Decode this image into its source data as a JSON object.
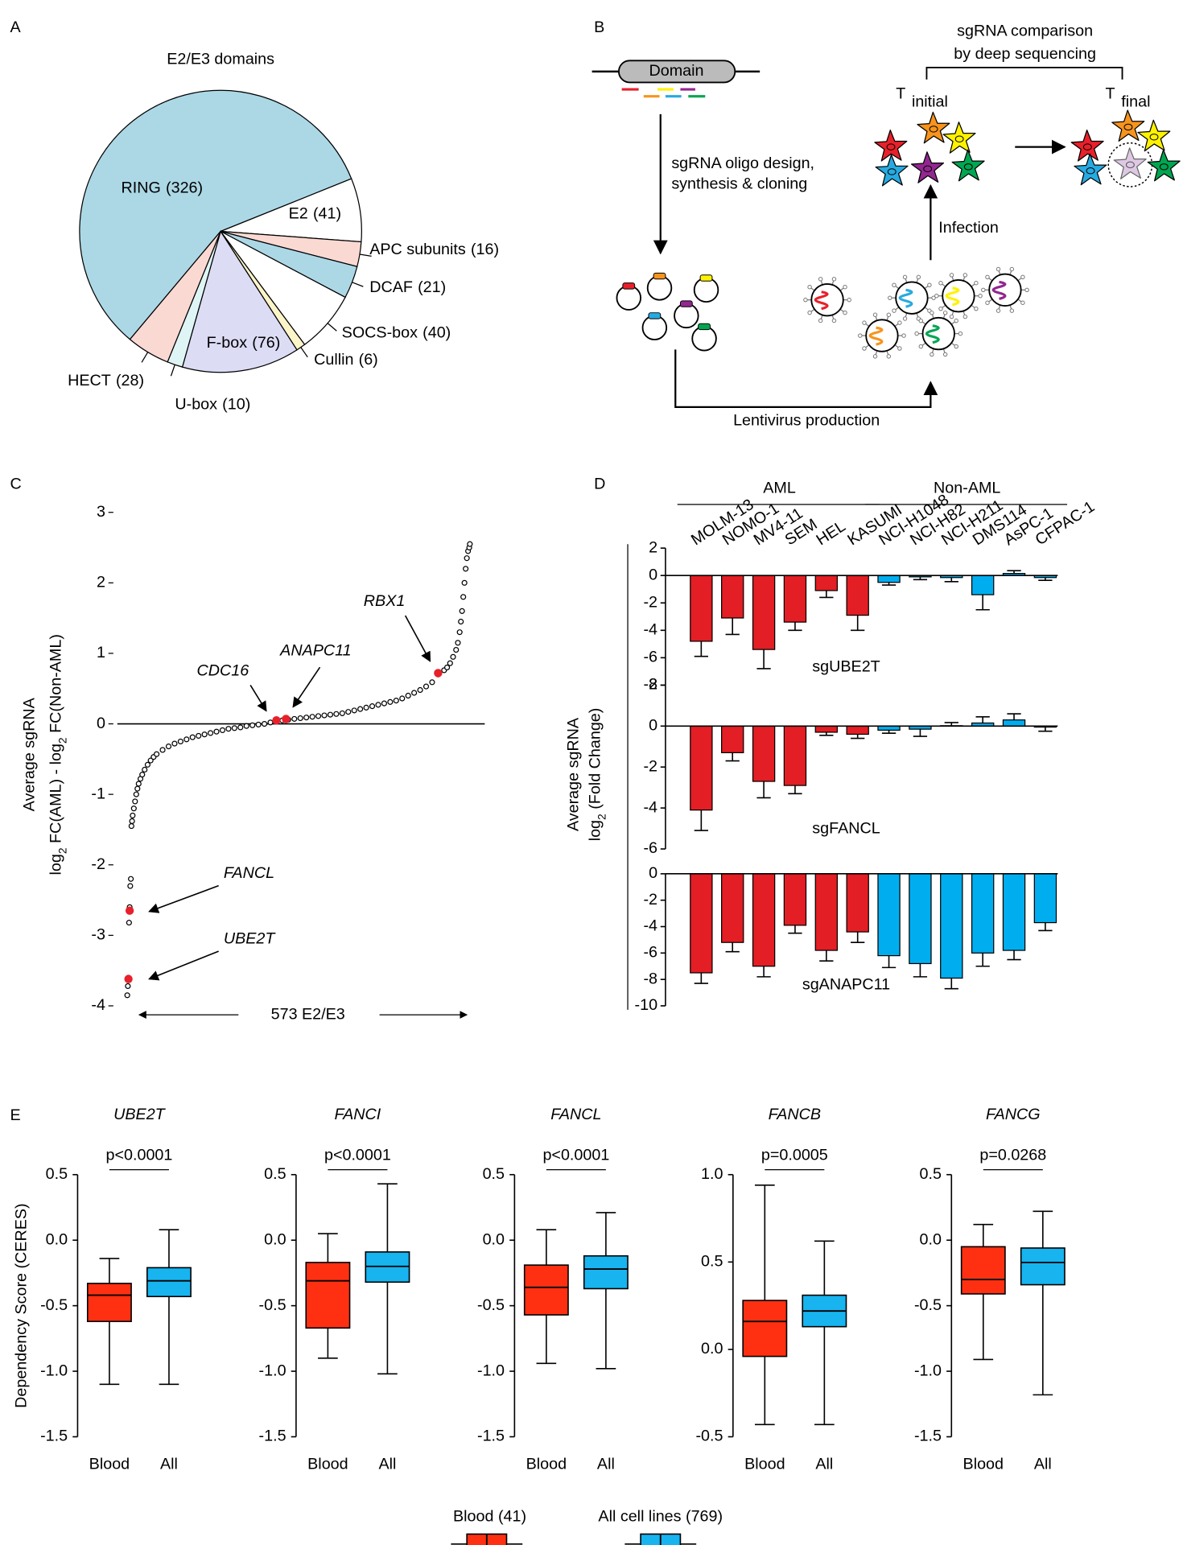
{
  "panel_labels": [
    "A",
    "B",
    "C",
    "D",
    "E"
  ],
  "diagram": {
    "domain": "Domain",
    "design": [
      "sgRNA oligo design,",
      "synthesis & cloning"
    ],
    "comparison": [
      "sgRNA comparison",
      "by deep sequencing"
    ],
    "t_initial": [
      "T",
      "initial"
    ],
    "t_final": [
      "T",
      "final"
    ],
    "infection": "Infection",
    "lentivirus": "Lentivirus production"
  },
  "chart_data": [
    {
      "type": "pie",
      "title": "E2/E3 domains",
      "categories": [
        "RING",
        "E2",
        "APC subunits",
        "DCAF",
        "SOCS-box",
        "Cullin",
        "F-box",
        "U-box",
        "HECT"
      ],
      "values": [
        326,
        41,
        16,
        21,
        40,
        6,
        76,
        10,
        28
      ],
      "value_labels": [
        "(326)",
        "(41)",
        "(16)",
        "(21)",
        "(40)",
        "(6)",
        "(76)",
        "(10)",
        "(28)"
      ],
      "colors": [
        "#acd8e6",
        "#ffffff",
        "#fbd9d3",
        "#acd8e6",
        "#ffffff",
        "#fcf5c9",
        "#dcdcf5",
        "#dff5f5",
        "#fbd9d3"
      ]
    },
    {
      "type": "scatter",
      "x": [
        1,
        2,
        3,
        4,
        5,
        6,
        7,
        8,
        9,
        10,
        12,
        14,
        16,
        18,
        20,
        23,
        26,
        30,
        35,
        40,
        45,
        50,
        60,
        70,
        80,
        90,
        100,
        110,
        120,
        130,
        140,
        150,
        160,
        170,
        180,
        190,
        200,
        210,
        220,
        230,
        240,
        250,
        260,
        270,
        280,
        290,
        300,
        310,
        320,
        330,
        340,
        350,
        360,
        370,
        380,
        390,
        400,
        410,
        420,
        430,
        440,
        450,
        460,
        470,
        480,
        490,
        500,
        510,
        520,
        530,
        535,
        540,
        545,
        550,
        553,
        556,
        558,
        560,
        562,
        564,
        566,
        568,
        570,
        572,
        573
      ],
      "values": [
        -3.85,
        -3.72,
        -3.6,
        -2.82,
        -2.6,
        -2.3,
        -2.2,
        -1.45,
        -1.38,
        -1.3,
        -1.2,
        -1.1,
        -1.0,
        -0.92,
        -0.85,
        -0.78,
        -0.72,
        -0.65,
        -0.58,
        -0.52,
        -0.47,
        -0.43,
        -0.37,
        -0.32,
        -0.28,
        -0.25,
        -0.22,
        -0.19,
        -0.17,
        -0.15,
        -0.13,
        -0.11,
        -0.09,
        -0.07,
        -0.06,
        -0.05,
        -0.03,
        -0.02,
        -0.01,
        0,
        0.02,
        0.04,
        0.05,
        0.06,
        0.07,
        0.08,
        0.09,
        0.1,
        0.11,
        0.12,
        0.13,
        0.14,
        0.15,
        0.17,
        0.19,
        0.21,
        0.23,
        0.25,
        0.27,
        0.29,
        0.31,
        0.33,
        0.36,
        0.4,
        0.44,
        0.48,
        0.53,
        0.59,
        0.7,
        0.76,
        0.8,
        0.86,
        0.95,
        1.05,
        1.15,
        1.3,
        1.45,
        1.6,
        1.8,
        2.0,
        2.2,
        2.35,
        2.45,
        2.5,
        2.55
      ],
      "ylim": [
        -4,
        3
      ],
      "yticks": [
        -4,
        -3,
        -2,
        -1,
        0,
        1,
        2,
        3
      ],
      "ylabel": {
        "line1": "Average sgRNA",
        "line2": [
          "log",
          "2",
          " FC(AML) - log",
          "2",
          " FC(Non-AML)"
        ]
      },
      "xlabel": "573 E2/E3",
      "highlights": [
        {
          "label": "FANCL",
          "x": 5,
          "y": -2.65,
          "color": "#e8202a"
        },
        {
          "label": "UBE2T",
          "x": 3,
          "y": -3.62,
          "color": "#e8202a"
        },
        {
          "label": "CDC16",
          "x": 250,
          "y": 0.05,
          "color": "#000000"
        },
        {
          "label": "ANAPC11",
          "x": 266,
          "y": 0.07,
          "color": "#000000"
        },
        {
          "label": "RBX1",
          "x": 520,
          "y": 0.72,
          "color": "#000000"
        }
      ]
    },
    {
      "type": "bar",
      "categories": [
        "MOLM-13",
        "NOMO-1",
        "MV4-11",
        "SEM",
        "HEL",
        "KASUMI",
        "NCI-H1048",
        "NCI-H82",
        "NCI-H211",
        "DMS114",
        "AsPC-1",
        "CFPAC-1"
      ],
      "groups": [
        {
          "name": "AML",
          "size": 6,
          "color": "#e31e24"
        },
        {
          "name": "Non-AML",
          "size": 6,
          "color": "#00aeef"
        }
      ],
      "ylabel": {
        "line1": "Average sgRNA",
        "line2": [
          "log",
          "2",
          " (Fold Change)"
        ]
      },
      "panels": [
        {
          "name": "sgUBE2T",
          "values": [
            -4.8,
            -3.1,
            -5.4,
            -3.4,
            -1.1,
            -2.9,
            -0.5,
            -0.1,
            -0.15,
            -1.4,
            0.15,
            -0.15
          ],
          "errors": [
            1.1,
            1.2,
            1.4,
            0.6,
            0.5,
            1.1,
            0.2,
            0.2,
            0.3,
            1.1,
            0.2,
            0.2
          ],
          "ylim": [
            -8,
            2
          ],
          "yticks": [
            -8,
            -6,
            -4,
            -2,
            0,
            2
          ]
        },
        {
          "name": "sgFANCL",
          "values": [
            -4.1,
            -1.3,
            -2.7,
            -2.9,
            -0.3,
            -0.4,
            -0.2,
            -0.15,
            0.02,
            0.15,
            0.3,
            -0.05
          ],
          "errors": [
            1.0,
            0.4,
            0.8,
            0.4,
            0.15,
            0.2,
            0.15,
            0.35,
            0.15,
            0.3,
            0.3,
            0.2
          ],
          "ylim": [
            -6,
            2
          ],
          "yticks": [
            -6,
            -4,
            -2,
            0,
            2
          ]
        },
        {
          "name": "sgANAPC11",
          "values": [
            -7.5,
            -5.2,
            -7.0,
            -3.9,
            -5.8,
            -4.4,
            -6.2,
            -6.8,
            -7.9,
            -6.0,
            -5.8,
            -3.7
          ],
          "errors": [
            0.8,
            0.7,
            0.8,
            0.6,
            0.8,
            0.8,
            0.9,
            1.0,
            0.8,
            1.0,
            0.7,
            0.6
          ],
          "ylim": [
            -10,
            0
          ],
          "yticks": [
            -10,
            -8,
            -6,
            -4,
            -2,
            0
          ]
        }
      ]
    },
    {
      "type": "box",
      "ylabel": "Dependency Score (CERES)",
      "categories": [
        "Blood",
        "All"
      ],
      "series": [
        {
          "name": "Blood (41)",
          "color": "#ff3011"
        },
        {
          "name": "All cell lines (769)",
          "color": "#17b4ef"
        }
      ],
      "panels": [
        {
          "title": "UBE2T",
          "p_label": "p<0.0001",
          "ylim": [
            -1.5,
            0.5
          ],
          "yticks": [
            0.5,
            {
              "value": 0,
              "label": "0.0"
            },
            -0.5,
            {
              "value": -1,
              "label": "-1.0"
            },
            -1.5
          ],
          "boxes": [
            [
              -1.1,
              -0.62,
              -0.42,
              -0.33,
              -0.14
            ],
            [
              -1.1,
              -0.43,
              -0.31,
              -0.21,
              0.08
            ]
          ]
        },
        {
          "title": "FANCI",
          "p_label": "p<0.0001",
          "ylim": [
            -1.5,
            0.5
          ],
          "yticks": [
            0.5,
            {
              "value": 0,
              "label": "0.0"
            },
            -0.5,
            {
              "value": -1,
              "label": "-1.0"
            },
            -1.5
          ],
          "boxes": [
            [
              -0.9,
              -0.67,
              -0.31,
              -0.17,
              0.05
            ],
            [
              -1.02,
              -0.32,
              -0.2,
              -0.09,
              0.43
            ]
          ]
        },
        {
          "title": "FANCL",
          "p_label": "p<0.0001",
          "ylim": [
            -1.5,
            0.5
          ],
          "yticks": [
            0.5,
            {
              "value": 0,
              "label": "0.0"
            },
            -0.5,
            {
              "value": -1,
              "label": "-1.0"
            },
            -1.5
          ],
          "boxes": [
            [
              -0.94,
              -0.57,
              -0.36,
              -0.19,
              0.08
            ],
            [
              -0.98,
              -0.37,
              -0.22,
              -0.12,
              0.21
            ]
          ]
        },
        {
          "title": "FANCB",
          "p_label": "p=0.0005",
          "ylim": [
            -0.5,
            1.0
          ],
          "yticks": [
            {
              "value": 1,
              "label": "1.0"
            },
            0.5,
            {
              "value": 0,
              "label": "0.0"
            },
            -0.5
          ],
          "boxes": [
            [
              -0.43,
              -0.04,
              0.16,
              0.28,
              0.94
            ],
            [
              -0.43,
              0.13,
              0.22,
              0.31,
              0.62
            ]
          ]
        },
        {
          "title": "FANCG",
          "p_label": "p=0.0268",
          "ylim": [
            -1.5,
            0.5
          ],
          "yticks": [
            0.5,
            {
              "value": 0,
              "label": "0.0"
            },
            -0.5,
            {
              "value": -1,
              "label": "-1.0"
            },
            -1.5
          ],
          "boxes": [
            [
              -0.91,
              -0.41,
              -0.3,
              -0.05,
              0.12
            ],
            [
              -1.18,
              -0.34,
              -0.17,
              -0.06,
              0.22
            ]
          ]
        }
      ]
    }
  ]
}
